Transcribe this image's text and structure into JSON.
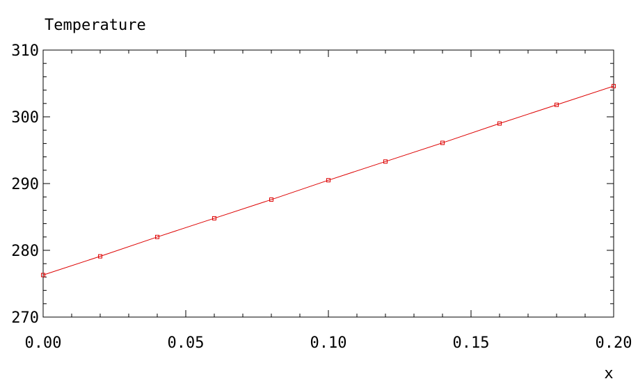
{
  "chart_data": {
    "type": "line",
    "ylabel": "Temperature",
    "xlabel": "x",
    "xlim": [
      0.0,
      0.2
    ],
    "ylim": [
      270,
      310
    ],
    "xticks": [
      0.0,
      0.05,
      0.1,
      0.15,
      0.2
    ],
    "xtick_labels": [
      "0.00",
      "0.05",
      "0.10",
      "0.15",
      "0.20"
    ],
    "yticks": [
      270,
      280,
      290,
      300,
      310
    ],
    "ytick_labels": [
      "270",
      "280",
      "290",
      "300",
      "310"
    ],
    "grid": false,
    "series": [
      {
        "color": "#dd0000",
        "marker": "square",
        "x": [
          0.0,
          0.02,
          0.04,
          0.06,
          0.08,
          0.1,
          0.12,
          0.14,
          0.16,
          0.18,
          0.2
        ],
        "y": [
          276.3,
          279.1,
          282.0,
          284.8,
          287.6,
          290.5,
          293.3,
          296.1,
          299.0,
          301.8,
          304.6
        ]
      }
    ]
  }
}
